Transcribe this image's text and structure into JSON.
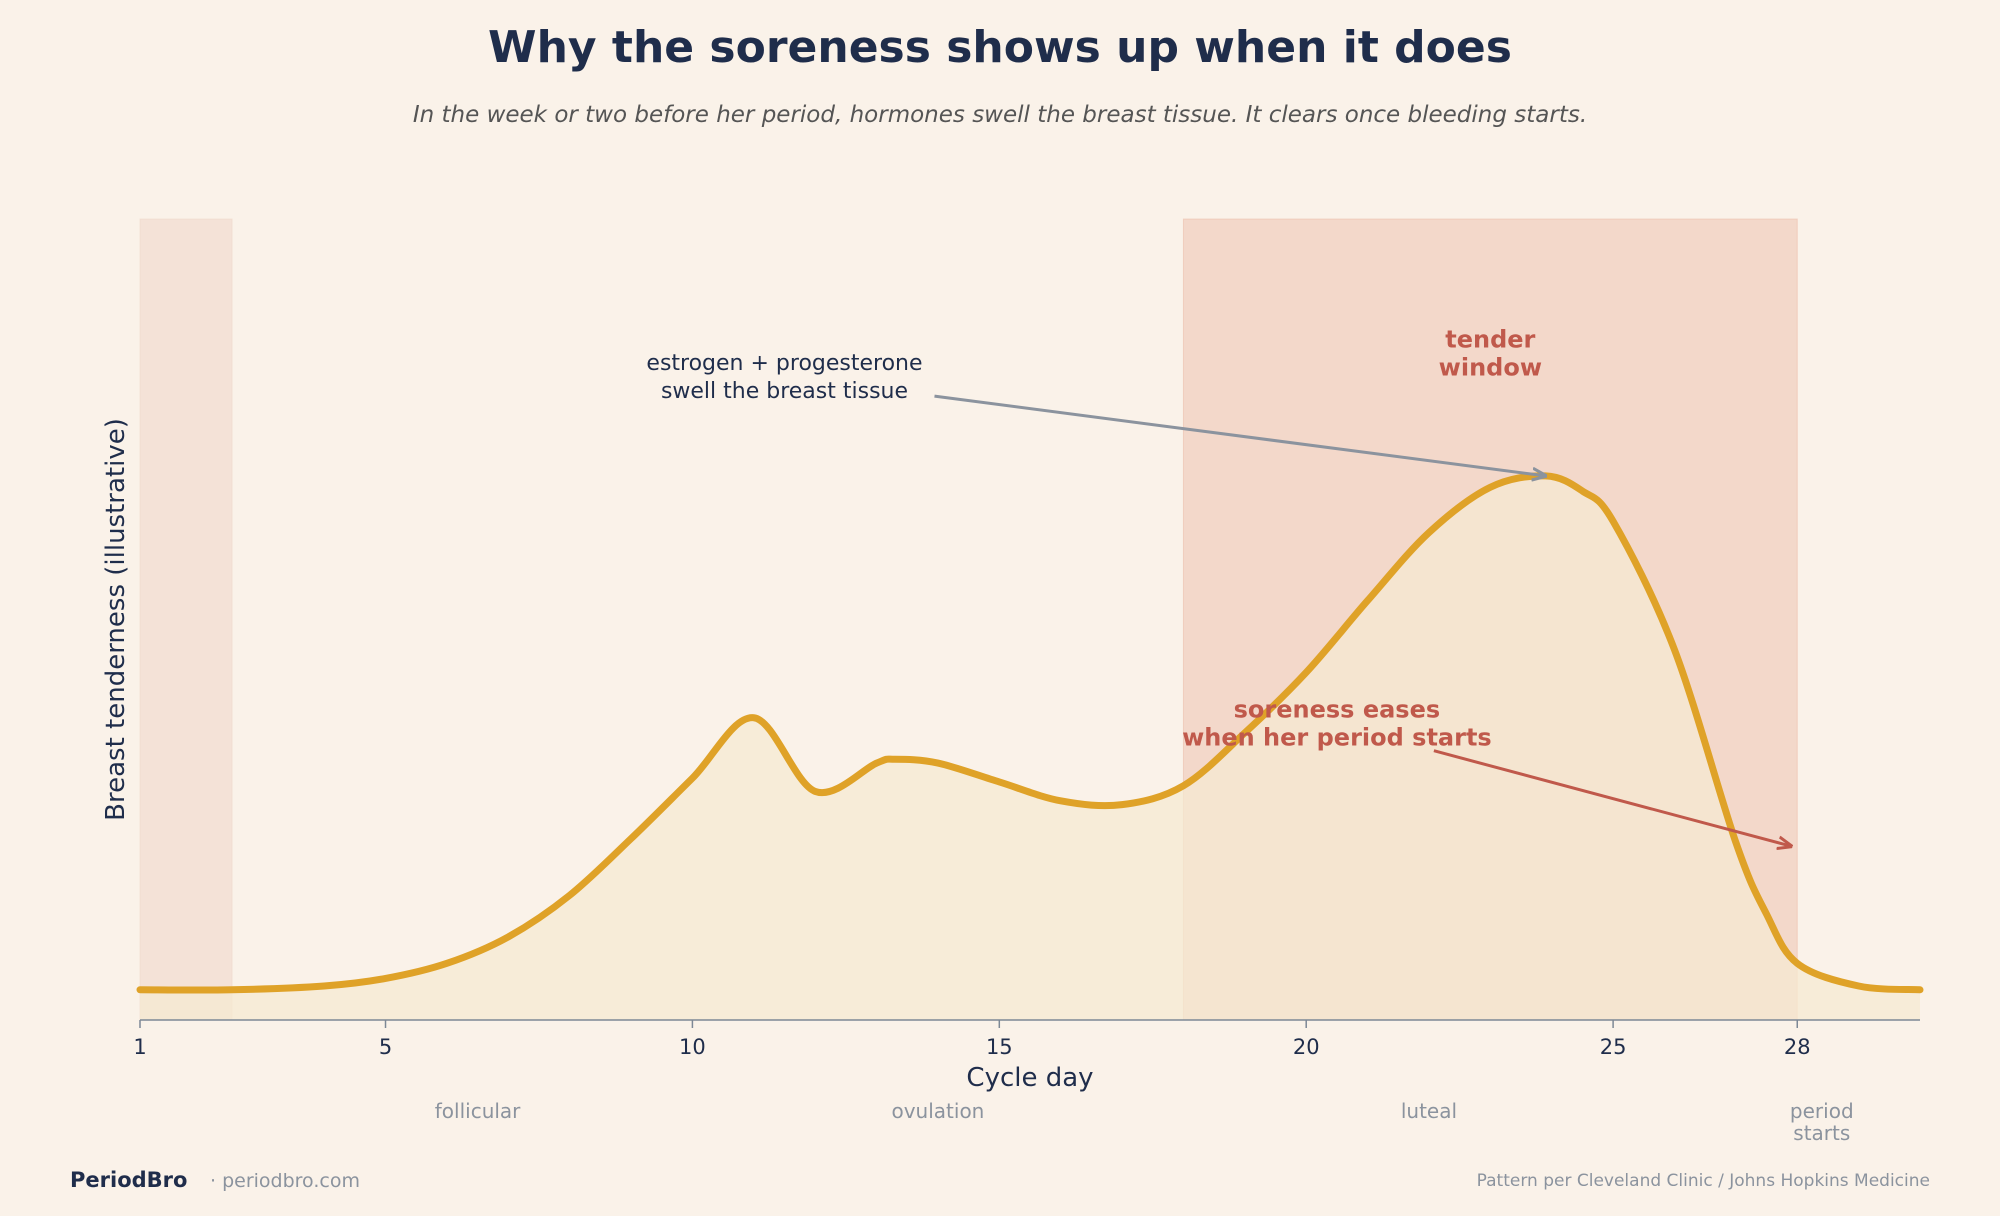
{
  "title": "Why the soreness shows up when it does",
  "subtitle": "In the week or two before her period, hormones swell the breast tissue. It clears once bleeding starts.",
  "footer": {
    "brand": "PeriodBro",
    "url": "· periodbro.com",
    "source": "Pattern per Cleveland Clinic / Johns Hopkins Medicine"
  },
  "chart_data": {
    "type": "area",
    "xlabel": "Cycle day",
    "ylabel": "Breast tenderness (illustrative)",
    "xlim": [
      1,
      30
    ],
    "ylim": [
      0,
      1.06
    ],
    "xticks": [
      1,
      5,
      10,
      15,
      20,
      25,
      28
    ],
    "grid": false,
    "curve": {
      "x": [
        1,
        2.5,
        4,
        5,
        6,
        7,
        8,
        9,
        10,
        11,
        12,
        13,
        13.3,
        14,
        15,
        16,
        17,
        18,
        19,
        20,
        21,
        22,
        23,
        23.9,
        24.5,
        25,
        26,
        27,
        27.5,
        28,
        29,
        30
      ],
      "y": [
        0.04,
        0.04,
        0.045,
        0.055,
        0.075,
        0.11,
        0.165,
        0.24,
        0.32,
        0.4,
        0.3025,
        0.34,
        0.345,
        0.34,
        0.315,
        0.29,
        0.285,
        0.31,
        0.38,
        0.46,
        0.555,
        0.645,
        0.705,
        0.72,
        0.7,
        0.66,
        0.49,
        0.235,
        0.14,
        0.075,
        0.045,
        0.04
      ]
    },
    "shaded_regions": [
      {
        "name": "period",
        "x": [
          1,
          2.5
        ]
      },
      {
        "name": "tender window",
        "x": [
          18,
          28
        ]
      }
    ],
    "phases": [
      {
        "label": "follicular",
        "x": 6.5
      },
      {
        "label": "ovulation",
        "x": 14
      },
      {
        "label": "luteal",
        "x": 22
      },
      {
        "label": "period\nstarts",
        "x": 28.4
      }
    ],
    "annotations": [
      {
        "text": "estrogen + progesterone\nswell the breast tissue",
        "text_x": 11.5,
        "text_y": 0.86,
        "arrow_to_x": 23.9,
        "arrow_to_y": 0.72,
        "color": "#8b939e"
      },
      {
        "text": "soreness eases\nwhen her period starts",
        "text_x": 20.5,
        "text_y": 0.4,
        "arrow_to_x": 27.9,
        "arrow_to_y": 0.23,
        "color": "#c0594b"
      },
      {
        "text": "tender\nwindow",
        "text_x": 23,
        "text_y": 0.89,
        "color": "#c0594b"
      }
    ],
    "colors": {
      "line": "#dfa228",
      "fill": "#f6e9d2",
      "window": "#ecb8a4",
      "period": "#eed6c8",
      "axis": "#7d8896"
    }
  }
}
